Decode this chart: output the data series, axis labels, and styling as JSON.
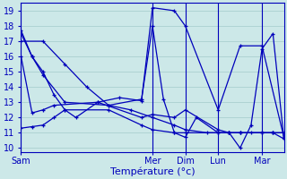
{
  "background_color": "#cce8e8",
  "grid_color": "#aacfcf",
  "line_color": "#0000bb",
  "xlabel": "Température (°c)",
  "xlabel_fontsize": 8,
  "yticks": [
    10,
    11,
    12,
    13,
    14,
    15,
    16,
    17,
    18,
    19
  ],
  "ylim": [
    9.7,
    19.5
  ],
  "xlim": [
    0,
    48
  ],
  "xtick_labels": [
    "Sam",
    "Mer",
    "Dim",
    "Lun",
    "Mar"
  ],
  "xtick_positions": [
    0,
    24,
    30,
    36,
    44
  ],
  "vlines": [
    0,
    24,
    30,
    36,
    44
  ],
  "series": [
    {
      "x": [
        0,
        2,
        4,
        8,
        16,
        22,
        24,
        26,
        28,
        30,
        32,
        36,
        38,
        40,
        42,
        44,
        46,
        48
      ],
      "y": [
        17.5,
        16.0,
        14.8,
        13.0,
        12.8,
        13.2,
        18.0,
        13.2,
        11.0,
        10.7,
        12.0,
        11.0,
        11.0,
        11.0,
        11.0,
        11.0,
        11.0,
        10.6
      ]
    },
    {
      "x": [
        0,
        2,
        4,
        6,
        14,
        22,
        24,
        28,
        30,
        36,
        38,
        40,
        44,
        46,
        48
      ],
      "y": [
        16.0,
        12.3,
        12.5,
        12.8,
        13.0,
        12.0,
        12.2,
        12.0,
        12.5,
        11.2,
        11.0,
        11.0,
        11.0,
        11.0,
        11.0
      ]
    },
    {
      "x": [
        0,
        2,
        4,
        6,
        8,
        16,
        22,
        24,
        28,
        30,
        36,
        38,
        40,
        44,
        46,
        48
      ],
      "y": [
        11.3,
        11.4,
        11.5,
        12.0,
        12.5,
        12.5,
        11.5,
        11.2,
        11.0,
        11.0,
        11.0,
        11.0,
        11.0,
        11.0,
        11.0,
        11.0
      ]
    },
    {
      "x": [
        0,
        2,
        4,
        6,
        8,
        10,
        14,
        18,
        22,
        24,
        28,
        30,
        36,
        40,
        44,
        48
      ],
      "y": [
        17.7,
        16.0,
        15.0,
        13.5,
        12.5,
        12.0,
        13.0,
        13.3,
        13.1,
        19.2,
        19.0,
        18.0,
        12.5,
        16.7,
        16.7,
        10.7
      ]
    },
    {
      "x": [
        0,
        4,
        8,
        12,
        16,
        20,
        24,
        28,
        30,
        34,
        36,
        38,
        40,
        42,
        44,
        46,
        48
      ],
      "y": [
        17.0,
        17.0,
        15.5,
        14.0,
        12.8,
        12.5,
        12.0,
        11.5,
        11.2,
        11.0,
        11.0,
        11.0,
        10.0,
        11.5,
        16.5,
        17.5,
        10.6
      ]
    }
  ]
}
